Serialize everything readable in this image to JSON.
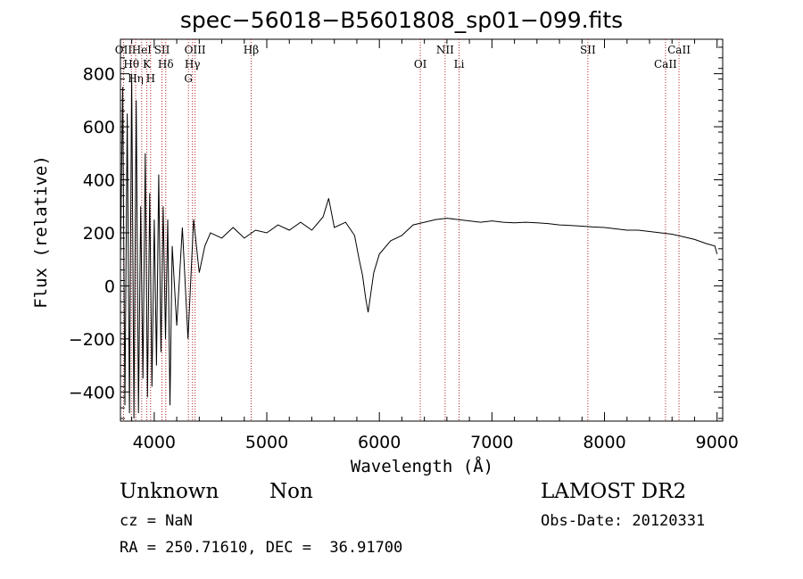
{
  "chart_data": {
    "type": "line",
    "title": "spec−56018−B5601808_sp01−099.fits",
    "xlabel": "Wavelength (Å)",
    "ylabel": "Flux (relative)",
    "xlim": [
      3700,
      9050
    ],
    "ylim": [
      -510,
      930
    ],
    "x_ticks": [
      4000,
      5000,
      6000,
      7000,
      8000,
      9000
    ],
    "y_ticks": [
      -400,
      -200,
      0,
      200,
      400,
      600,
      800
    ],
    "series": [
      {
        "x": [
          3700,
          3720,
          3740,
          3760,
          3780,
          3800,
          3820,
          3840,
          3860,
          3880,
          3900,
          3920,
          3940,
          3960,
          3980,
          4000,
          4020,
          4040,
          4060,
          4080,
          4100,
          4120,
          4140,
          4160,
          4200,
          4250,
          4300,
          4350,
          4400,
          4450,
          4500,
          4600,
          4700,
          4800,
          4900,
          5000,
          5100,
          5200,
          5300,
          5400,
          5500,
          5550,
          5600,
          5700,
          5780,
          5820,
          5850,
          5880,
          5900,
          5950,
          6000,
          6100,
          6200,
          6300,
          6400,
          6500,
          6600,
          6700,
          6800,
          6900,
          7000,
          7100,
          7200,
          7300,
          7400,
          7500,
          7600,
          7700,
          7800,
          7900,
          8000,
          8100,
          8200,
          8300,
          8400,
          8500,
          8600,
          8700,
          8800,
          8900,
          8980,
          9000
        ],
        "y": [
          100,
          750,
          -450,
          650,
          -480,
          800,
          -500,
          700,
          -480,
          300,
          -350,
          500,
          -420,
          350,
          -380,
          250,
          -300,
          420,
          -250,
          300,
          -200,
          250,
          -450,
          150,
          -150,
          220,
          -200,
          250,
          50,
          150,
          200,
          180,
          220,
          180,
          210,
          200,
          230,
          210,
          240,
          210,
          260,
          330,
          220,
          240,
          190,
          100,
          40,
          -50,
          -100,
          50,
          120,
          170,
          190,
          230,
          240,
          250,
          255,
          250,
          245,
          240,
          245,
          240,
          238,
          240,
          238,
          235,
          230,
          228,
          225,
          222,
          220,
          215,
          210,
          210,
          205,
          200,
          195,
          185,
          175,
          160,
          150,
          120
        ]
      }
    ],
    "line_markers": [
      {
        "label": "OII",
        "x": 3727
      },
      {
        "label": "Hθ",
        "x": 3797
      },
      {
        "label": "Hη",
        "x": 3835
      },
      {
        "label": "HeI",
        "x": 3889
      },
      {
        "label": "K",
        "x": 3934
      },
      {
        "label": "H",
        "x": 3968
      },
      {
        "label": "SII",
        "x": 4069
      },
      {
        "label": "Hδ",
        "x": 4102
      },
      {
        "label": "G",
        "x": 4304
      },
      {
        "label": "OIII",
        "x": 4363
      },
      {
        "label": "Hγ",
        "x": 4340
      },
      {
        "label": "Hβ",
        "x": 4861
      },
      {
        "label": "OI",
        "x": 6364
      },
      {
        "label": "NII",
        "x": 6584
      },
      {
        "label": "Li",
        "x": 6708
      },
      {
        "label": "SII",
        "x": 7852
      },
      {
        "label": "CaII",
        "x": 8542
      },
      {
        "label": "CaII",
        "x": 8662
      }
    ]
  },
  "footer": {
    "object_class": "Unknown",
    "object_subclass": "Non",
    "survey": "LAMOST DR2",
    "cz": "cz = NaN",
    "obs_date": "Obs-Date: 20120331",
    "coords": "RA = 250.71610, DEC =  36.91700"
  }
}
